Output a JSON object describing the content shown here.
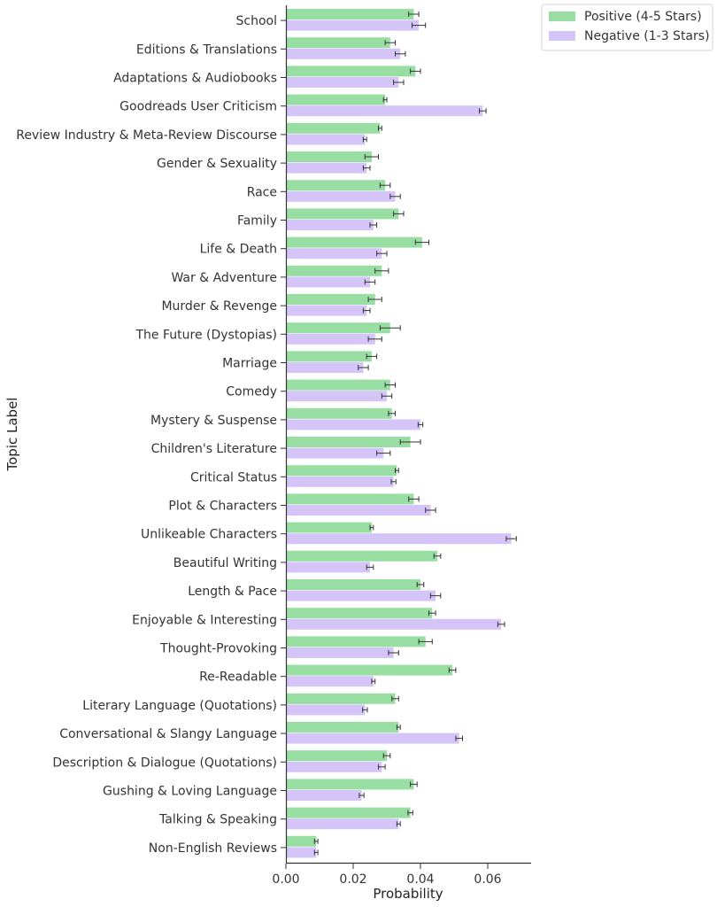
{
  "chart_data": {
    "type": "bar",
    "orientation": "horizontal",
    "title": "",
    "xlabel": "Probability",
    "ylabel": "Topic Label",
    "xlim": [
      0,
      0.072
    ],
    "xticks": [
      "0.00",
      "0.02",
      "0.04",
      "0.06"
    ],
    "xtick_values": [
      0,
      0.02,
      0.04,
      0.06
    ],
    "grid": false,
    "legend_position": "top-right",
    "categories": [
      "School",
      "Editions & Translations",
      "Adaptations & Audiobooks",
      "Goodreads User Criticism",
      "Review Industry & Meta-Review Discourse",
      "Gender & Sexuality",
      "Race",
      "Family",
      "Life & Death",
      "War & Adventure",
      "Murder & Revenge",
      "The Future (Dystopias)",
      "Marriage",
      "Comedy",
      "Mystery & Suspense",
      "Children's Literature",
      "Critical Status",
      "Plot & Characters",
      "Unlikeable Characters",
      "Beautiful Writing",
      "Length & Pace",
      "Enjoyable & Interesting",
      "Thought-Provoking",
      "Re-Readable",
      "Literary Language (Quotations)",
      "Conversational & Slangy Language",
      "Description & Dialogue (Quotations)",
      "Gushing & Loving Language",
      "Talking & Speaking",
      "Non-English Reviews"
    ],
    "series": [
      {
        "name": "Positive (4-5 Stars)",
        "color": "#98dea3",
        "values": [
          0.038,
          0.031,
          0.0385,
          0.0295,
          0.028,
          0.0255,
          0.0295,
          0.0335,
          0.0405,
          0.0285,
          0.0265,
          0.031,
          0.0255,
          0.031,
          0.0315,
          0.037,
          0.033,
          0.038,
          0.0255,
          0.045,
          0.04,
          0.0435,
          0.0415,
          0.0495,
          0.0325,
          0.0335,
          0.03,
          0.038,
          0.037,
          0.009
        ],
        "errors": [
          0.0015,
          0.0015,
          0.0015,
          0.0005,
          0.0005,
          0.002,
          0.0015,
          0.0015,
          0.002,
          0.002,
          0.002,
          0.003,
          0.0015,
          0.0015,
          0.001,
          0.003,
          0.0005,
          0.0015,
          0.0005,
          0.001,
          0.001,
          0.001,
          0.002,
          0.001,
          0.001,
          0.0005,
          0.001,
          0.001,
          0.0007,
          0.0005
        ]
      },
      {
        "name": "Negative (1-3 Stars)",
        "color": "#d4c4f8",
        "values": [
          0.0395,
          0.034,
          0.0335,
          0.0585,
          0.0235,
          0.024,
          0.0325,
          0.026,
          0.0285,
          0.025,
          0.024,
          0.0265,
          0.023,
          0.03,
          0.04,
          0.029,
          0.032,
          0.043,
          0.067,
          0.025,
          0.0445,
          0.064,
          0.032,
          0.026,
          0.0235,
          0.0515,
          0.0285,
          0.0225,
          0.0335,
          0.009
        ],
        "errors": [
          0.002,
          0.0015,
          0.0015,
          0.001,
          0.0005,
          0.001,
          0.0015,
          0.001,
          0.0015,
          0.0015,
          0.001,
          0.002,
          0.0015,
          0.0015,
          0.0007,
          0.002,
          0.0007,
          0.0015,
          0.0015,
          0.001,
          0.0015,
          0.001,
          0.0015,
          0.0005,
          0.0007,
          0.001,
          0.001,
          0.0007,
          0.0005,
          0.0005
        ]
      }
    ]
  }
}
